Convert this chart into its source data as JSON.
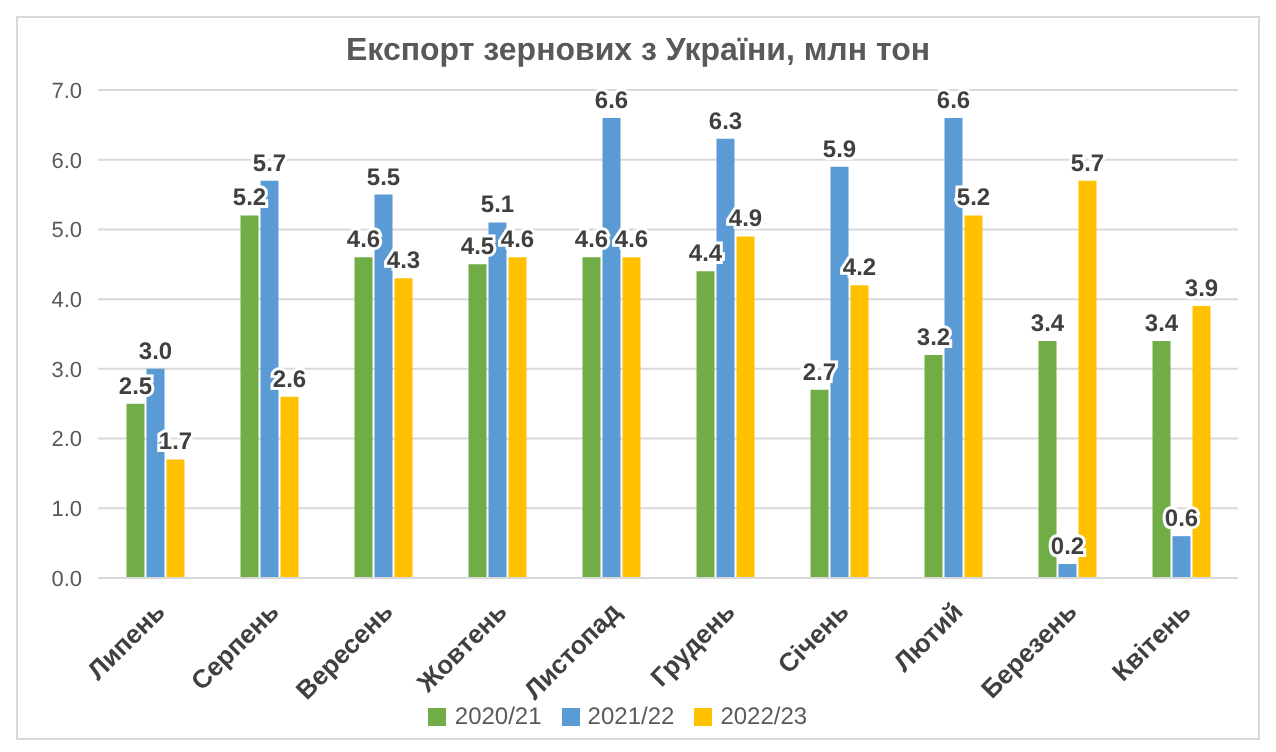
{
  "chart_data": {
    "type": "bar",
    "title": "Експорт зернових з України, млн тон",
    "categories": [
      "Липень",
      "Серпень",
      "Вересень",
      "Жовтень",
      "Листопад",
      "Грудень",
      "Січень",
      "Лютий",
      "Березень",
      "Квітень"
    ],
    "series": [
      {
        "name": "2020/21",
        "color": "#70ad47",
        "values": [
          2.5,
          5.2,
          4.6,
          4.5,
          4.6,
          4.4,
          2.7,
          3.2,
          3.4,
          3.4
        ],
        "value_labels": [
          "2.5",
          "5.2",
          "4.6",
          "4.5",
          "4.6",
          "4.4",
          "2.7",
          "3.2",
          "3.4",
          "3.4"
        ]
      },
      {
        "name": "2021/22",
        "color": "#5b9bd5",
        "values": [
          3.0,
          5.7,
          5.5,
          5.1,
          6.6,
          6.3,
          5.9,
          6.6,
          0.2,
          0.6
        ],
        "value_labels": [
          "3.0",
          "5.7",
          "5.5",
          "5.1",
          "6.6",
          "6.3",
          "5.9",
          "6.6",
          "0.2",
          "0.6"
        ]
      },
      {
        "name": "2022/23",
        "color": "#ffc000",
        "values": [
          1.7,
          2.6,
          4.3,
          4.6,
          4.6,
          4.9,
          4.2,
          5.2,
          5.7,
          3.9
        ],
        "value_labels": [
          "1.7",
          "2.6",
          "4.3",
          "4.6",
          "4.6",
          "4.9",
          "4.2",
          "5.2",
          "5.7",
          "3.9"
        ]
      }
    ],
    "ylim": [
      0,
      7
    ],
    "yticks": [
      {
        "value": 0,
        "label": "0.0"
      },
      {
        "value": 1,
        "label": "1.0"
      },
      {
        "value": 2,
        "label": "2.0"
      },
      {
        "value": 3,
        "label": "3.0"
      },
      {
        "value": 4,
        "label": "4.0"
      },
      {
        "value": 5,
        "label": "5.0"
      },
      {
        "value": 6,
        "label": "6.0"
      },
      {
        "value": 7,
        "label": "7.0"
      }
    ],
    "grid": "y",
    "legend": "bottom"
  }
}
